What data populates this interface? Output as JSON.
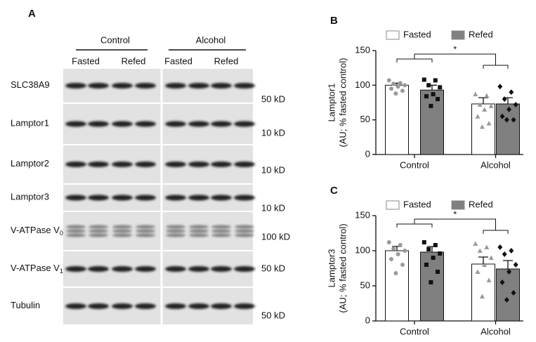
{
  "panel_a": {
    "label": "A",
    "groups": [
      {
        "name": "Control",
        "conditions": [
          "Fasted",
          "Refed"
        ]
      },
      {
        "name": "Alcohol",
        "conditions": [
          "Fasted",
          "Refed"
        ]
      }
    ],
    "rows": [
      {
        "label": "SLC38A9",
        "size": "50 kD"
      },
      {
        "label": "Lamptor1",
        "size": "10 kD"
      },
      {
        "label": "Lamptor2",
        "size": "10 kD"
      },
      {
        "label": "Lamptor3",
        "size": "10 kD"
      },
      {
        "label": "V-ATPase V",
        "subscript": "0",
        "size": "100 kD"
      },
      {
        "label": "V-ATPase V",
        "subscript": "1",
        "size": "50 kD"
      },
      {
        "label": "Tubulin",
        "size": "50 kD"
      }
    ]
  },
  "chart_data": [
    {
      "type": "bar",
      "panel": "B",
      "ylabel": [
        "Lamptor1",
        "(AU; % fasted control)"
      ],
      "annotation": "*",
      "categories": [
        "Control",
        "Alcohol"
      ],
      "ylim": [
        0,
        150
      ],
      "yticks": [
        0,
        50,
        100,
        150
      ],
      "series": [
        {
          "name": "Fasted",
          "color": "#ffffff",
          "values": [
            100,
            73
          ],
          "errors": [
            3,
            9
          ],
          "points": [
            [
              107,
              103,
              102,
              100,
              98,
              95,
              92,
              88
            ],
            [
              87,
              85,
              72,
              70,
              65,
              55,
              45,
              40
            ]
          ]
        },
        {
          "name": "Refed",
          "color": "#808080",
          "values": [
            93,
            73
          ],
          "errors": [
            7,
            9
          ],
          "points": [
            [
              108,
              107,
              100,
              97,
              87,
              84,
              80,
              70
            ],
            [
              98,
              90,
              80,
              72,
              65,
              55,
              50,
              50
            ]
          ]
        }
      ]
    },
    {
      "type": "bar",
      "panel": "C",
      "ylabel": [
        "Lamptor3",
        "(AU; % fasted control)"
      ],
      "annotation": "*",
      "categories": [
        "Control",
        "Alcohol"
      ],
      "ylim": [
        0,
        150
      ],
      "yticks": [
        0,
        50,
        100,
        150
      ],
      "series": [
        {
          "name": "Fasted",
          "color": "#ffffff",
          "values": [
            100,
            81
          ],
          "errors": [
            6,
            10
          ],
          "points": [
            [
              112,
              108,
              103,
              100,
              95,
              88,
              80,
              68
            ],
            [
              110,
              105,
              100,
              90,
              80,
              70,
              58,
              35
            ]
          ]
        },
        {
          "name": "Refed",
          "color": "#808080",
          "values": [
            98,
            74
          ],
          "errors": [
            8,
            12
          ],
          "points": [
            [
              112,
              108,
              102,
              96,
              90,
              80,
              70,
              55
            ],
            [
              105,
              100,
              95,
              80,
              70,
              55,
              40,
              30
            ]
          ]
        }
      ]
    }
  ]
}
